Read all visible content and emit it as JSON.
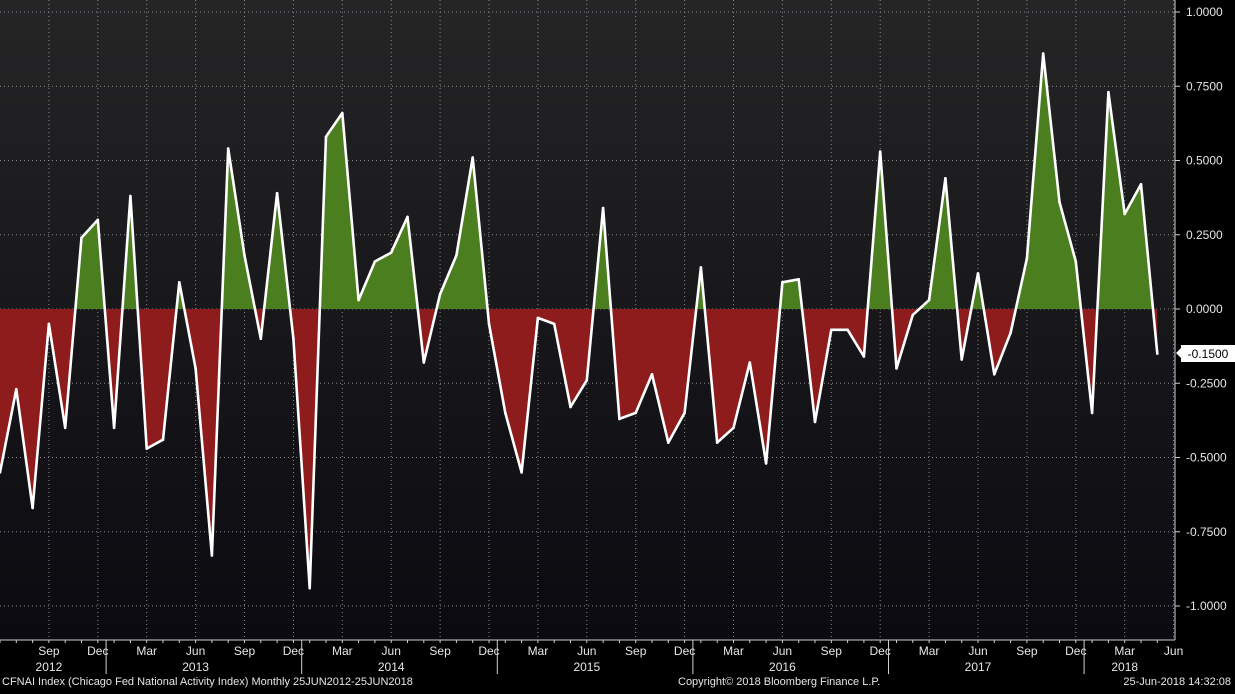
{
  "footer": {
    "left": "CFNAI Index (Chicago Fed National Activity Index)  Monthly 25JUN2012-25JUN2018",
    "center": "Copyright© 2018 Bloomberg Finance L.P.",
    "right": "25-Jun-2018 14:32:08"
  },
  "last_value_label": "-0.1500",
  "colors": {
    "background_top": "#252526",
    "background_bottom": "#0a0a10",
    "line": "#ffffff",
    "positive_fill": "#4a7e1e",
    "negative_fill": "#8e1c1c",
    "grid": "#8a8a8a",
    "axis": "#cfcfcf"
  },
  "chart_data": {
    "type": "area",
    "title": "",
    "xlabel": "",
    "ylabel": "",
    "ylim": [
      -1.1,
      1.0
    ],
    "grid": true,
    "baseline": 0,
    "y_ticks": [
      {
        "value": 1.0,
        "label": "1.0000"
      },
      {
        "value": 0.75,
        "label": "0.7500"
      },
      {
        "value": 0.5,
        "label": "0.5000"
      },
      {
        "value": 0.25,
        "label": "0.2500"
      },
      {
        "value": 0.0,
        "label": "0.0000"
      },
      {
        "value": -0.25,
        "label": "-0.2500"
      },
      {
        "value": -0.5,
        "label": "-0.5000"
      },
      {
        "value": -0.75,
        "label": "-0.7500"
      },
      {
        "value": -1.0,
        "label": "-1.0000"
      }
    ],
    "x_ticks": [
      {
        "x": "2012-09",
        "label": "Sep"
      },
      {
        "x": "2012-12",
        "label": "Dec"
      },
      {
        "x": "2013-03",
        "label": "Mar"
      },
      {
        "x": "2013-06",
        "label": "Jun"
      },
      {
        "x": "2013-09",
        "label": "Sep"
      },
      {
        "x": "2013-12",
        "label": "Dec"
      },
      {
        "x": "2014-03",
        "label": "Mar"
      },
      {
        "x": "2014-06",
        "label": "Jun"
      },
      {
        "x": "2014-09",
        "label": "Sep"
      },
      {
        "x": "2014-12",
        "label": "Dec"
      },
      {
        "x": "2015-03",
        "label": "Mar"
      },
      {
        "x": "2015-06",
        "label": "Jun"
      },
      {
        "x": "2015-09",
        "label": "Sep"
      },
      {
        "x": "2015-12",
        "label": "Dec"
      },
      {
        "x": "2016-03",
        "label": "Mar"
      },
      {
        "x": "2016-06",
        "label": "Jun"
      },
      {
        "x": "2016-09",
        "label": "Sep"
      },
      {
        "x": "2016-12",
        "label": "Dec"
      },
      {
        "x": "2017-03",
        "label": "Mar"
      },
      {
        "x": "2017-06",
        "label": "Jun"
      },
      {
        "x": "2017-09",
        "label": "Sep"
      },
      {
        "x": "2017-12",
        "label": "Dec"
      },
      {
        "x": "2018-03",
        "label": "Mar"
      },
      {
        "x": "2018-06",
        "label": "Jun"
      }
    ],
    "year_labels": [
      {
        "x": "2012-09",
        "label": "2012"
      },
      {
        "x": "2013-06",
        "label": "2013"
      },
      {
        "x": "2014-06",
        "label": "2014"
      },
      {
        "x": "2015-06",
        "label": "2015"
      },
      {
        "x": "2016-06",
        "label": "2016"
      },
      {
        "x": "2017-06",
        "label": "2017"
      },
      {
        "x": "2018-03",
        "label": "2018"
      }
    ],
    "series": [
      {
        "name": "CFNAI Index",
        "x": [
          "2012-06",
          "2012-07",
          "2012-08",
          "2012-09",
          "2012-10",
          "2012-11",
          "2012-12",
          "2013-01",
          "2013-02",
          "2013-03",
          "2013-04",
          "2013-05",
          "2013-06",
          "2013-07",
          "2013-08",
          "2013-09",
          "2013-10",
          "2013-11",
          "2013-12",
          "2014-01",
          "2014-02",
          "2014-03",
          "2014-04",
          "2014-05",
          "2014-06",
          "2014-07",
          "2014-08",
          "2014-09",
          "2014-10",
          "2014-11",
          "2014-12",
          "2015-01",
          "2015-02",
          "2015-03",
          "2015-04",
          "2015-05",
          "2015-06",
          "2015-07",
          "2015-08",
          "2015-09",
          "2015-10",
          "2015-11",
          "2015-12",
          "2016-01",
          "2016-02",
          "2016-03",
          "2016-04",
          "2016-05",
          "2016-06",
          "2016-07",
          "2016-08",
          "2016-09",
          "2016-10",
          "2016-11",
          "2016-12",
          "2017-01",
          "2017-02",
          "2017-03",
          "2017-04",
          "2017-05",
          "2017-06",
          "2017-07",
          "2017-08",
          "2017-09",
          "2017-10",
          "2017-11",
          "2017-12",
          "2018-01",
          "2018-02",
          "2018-03",
          "2018-04",
          "2018-05"
        ],
        "values": [
          -0.55,
          -0.27,
          -0.67,
          -0.05,
          -0.4,
          0.24,
          0.3,
          -0.4,
          0.38,
          -0.47,
          -0.44,
          0.09,
          -0.2,
          -0.83,
          0.54,
          0.18,
          -0.1,
          0.39,
          -0.1,
          -0.94,
          0.58,
          0.66,
          0.03,
          0.16,
          0.19,
          0.31,
          -0.18,
          0.05,
          0.18,
          0.51,
          -0.05,
          -0.35,
          -0.55,
          -0.03,
          -0.05,
          -0.33,
          -0.24,
          0.34,
          -0.37,
          -0.35,
          -0.22,
          -0.45,
          -0.35,
          0.14,
          -0.45,
          -0.4,
          -0.18,
          -0.52,
          0.09,
          0.1,
          -0.38,
          -0.07,
          -0.07,
          -0.16,
          0.53,
          -0.2,
          -0.02,
          0.03,
          0.44,
          -0.17,
          0.12,
          -0.22,
          -0.08,
          0.17,
          0.86,
          0.36,
          0.16,
          -0.35,
          0.73,
          0.32,
          0.42,
          -0.15
        ]
      }
    ]
  }
}
